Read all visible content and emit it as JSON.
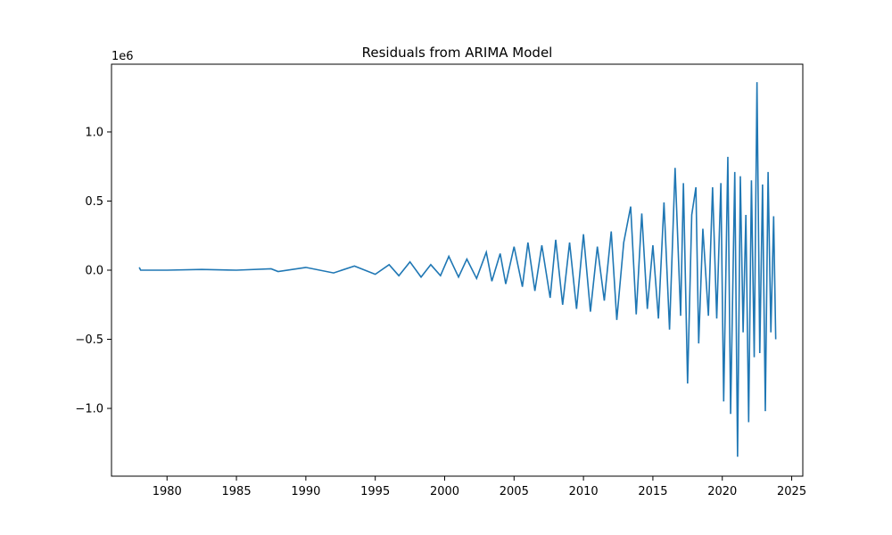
{
  "chart_data": {
    "type": "line",
    "title": "Residuals from ARIMA Model",
    "xlabel": "",
    "ylabel": "",
    "y_offset_label": "1e6",
    "x_axis_kind": "date",
    "xlim": [
      1976.0,
      2025.8
    ],
    "ylim": [
      -1.49,
      1.49
    ],
    "y_scale_multiplier": 1000000,
    "x_ticks": [
      1980,
      1985,
      1990,
      1995,
      2000,
      2005,
      2010,
      2015,
      2020,
      2025
    ],
    "x_tick_labels": [
      "1980",
      "1985",
      "1990",
      "1995",
      "2000",
      "2005",
      "2010",
      "2015",
      "2020",
      "2025"
    ],
    "y_ticks": [
      -1.0,
      -0.5,
      0.0,
      0.5,
      1.0
    ],
    "y_tick_labels": [
      "−1.0",
      "−0.5",
      "0.0",
      "0.5",
      "1.0"
    ],
    "grid": false,
    "legend": "none",
    "series": [
      {
        "color": "#1f77b4",
        "x": [
          1978.0,
          1978.1,
          1980.0,
          1982.5,
          1985.0,
          1987.5,
          1988.0,
          1990.0,
          1992.0,
          1993.5,
          1995.0,
          1996.0,
          1996.7,
          1997.5,
          1998.3,
          1999.0,
          1999.7,
          2000.3,
          2001.0,
          2001.6,
          2002.3,
          2003.0,
          2003.4,
          2004.0,
          2004.4,
          2005.0,
          2005.6,
          2006.0,
          2006.5,
          2007.0,
          2007.6,
          2008.0,
          2008.5,
          2009.0,
          2009.5,
          2010.0,
          2010.5,
          2011.0,
          2011.5,
          2012.0,
          2012.4,
          2012.9,
          2013.4,
          2013.8,
          2014.2,
          2014.6,
          2015.0,
          2015.4,
          2015.8,
          2016.2,
          2016.6,
          2017.0,
          2017.2,
          2017.5,
          2017.8,
          2018.1,
          2018.3,
          2018.6,
          2019.0,
          2019.3,
          2019.6,
          2019.9,
          2020.1,
          2020.4,
          2020.6,
          2020.9,
          2021.1,
          2021.3,
          2021.5,
          2021.7,
          2021.9,
          2022.1,
          2022.3,
          2022.5,
          2022.7,
          2022.9,
          2023.1,
          2023.3,
          2023.5,
          2023.7,
          2023.85
        ],
        "values": [
          0.02,
          0.0,
          0.0,
          0.005,
          0.0,
          0.01,
          -0.01,
          0.02,
          -0.02,
          0.03,
          -0.03,
          0.04,
          -0.04,
          0.06,
          -0.05,
          0.04,
          -0.04,
          0.1,
          -0.05,
          0.08,
          -0.06,
          0.13,
          -0.08,
          0.12,
          -0.1,
          0.17,
          -0.12,
          0.2,
          -0.15,
          0.18,
          -0.2,
          0.22,
          -0.25,
          0.2,
          -0.28,
          0.26,
          -0.3,
          0.17,
          -0.22,
          0.28,
          -0.36,
          0.2,
          0.46,
          -0.32,
          0.41,
          -0.28,
          0.18,
          -0.35,
          0.49,
          -0.43,
          0.74,
          -0.33,
          0.63,
          -0.82,
          0.4,
          0.6,
          -0.53,
          0.3,
          -0.33,
          0.6,
          -0.35,
          0.63,
          -0.95,
          0.82,
          -1.04,
          0.71,
          -1.35,
          0.68,
          -0.45,
          0.4,
          -1.1,
          0.65,
          -0.63,
          1.36,
          -0.6,
          0.62,
          -1.02,
          0.71,
          -0.45,
          0.39,
          -0.5
        ]
      }
    ]
  }
}
